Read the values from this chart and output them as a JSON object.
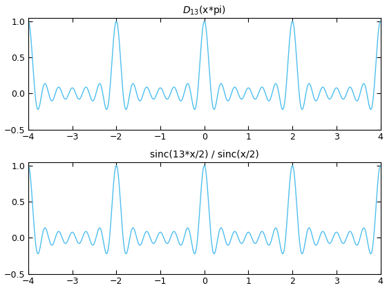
{
  "N": 13,
  "x_min": -4,
  "x_max": 4,
  "n_points": 10000,
  "ylim": [
    -0.5,
    1.05
  ],
  "yticks": [
    -0.5,
    0,
    0.5,
    1
  ],
  "xticks": [
    -4,
    -3,
    -2,
    -1,
    0,
    1,
    2,
    3,
    4
  ],
  "line_color": "#4DBEEE",
  "line_width": 1.0,
  "title1": "$D_{13}$(x*pi)",
  "title2": "sinc(13*x/2) / sinc(x/2)",
  "bg_color": "#ffffff",
  "fig_width": 5.6,
  "fig_height": 4.2,
  "dpi": 100,
  "title_fontsize": 10,
  "tick_fontsize": 9
}
